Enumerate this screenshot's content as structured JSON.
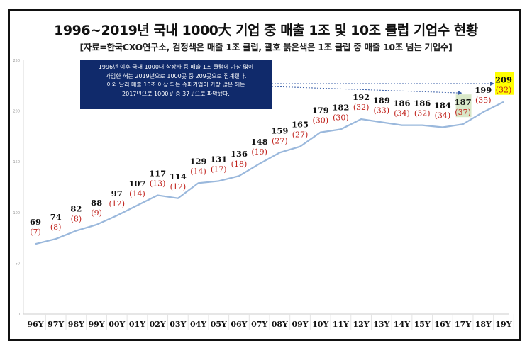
{
  "chart_data": {
    "type": "line",
    "title": "1996~2019년 국내 1000大 기업 중 매출 1조 및 10조 클럽 기업수 현황",
    "subtitle": "[자료=한국CXO연구소, 검정색은 매출 1조 클럽, 괄호 붉은색은 1조 클럽 중 매출 10조 넘는 기업수]",
    "categories": [
      "96Y",
      "97Y",
      "98Y",
      "99Y",
      "00Y",
      "01Y",
      "02Y",
      "03Y",
      "04Y",
      "05Y",
      "06Y",
      "07Y",
      "08Y",
      "09Y",
      "10Y",
      "11Y",
      "12Y",
      "13Y",
      "14Y",
      "15Y",
      "16Y",
      "17Y",
      "18Y",
      "19Y"
    ],
    "series": [
      {
        "values": [
          69,
          74,
          82,
          88,
          97,
          107,
          117,
          114,
          129,
          131,
          136,
          148,
          159,
          165,
          179,
          182,
          192,
          189,
          186,
          186,
          184,
          187,
          199,
          209
        ]
      },
      {
        "values": [
          7,
          8,
          8,
          9,
          12,
          14,
          13,
          12,
          14,
          17,
          18,
          19,
          27,
          27,
          30,
          30,
          32,
          33,
          34,
          32,
          34,
          37,
          35,
          32
        ]
      }
    ],
    "labels_1t": [
      "69",
      "74",
      "82",
      "88",
      "97",
      "107",
      "117",
      "114",
      "129",
      "131",
      "136",
      "148",
      "159",
      "165",
      "179",
      "182",
      "192",
      "189",
      "186",
      "186",
      "184",
      "187",
      "199",
      "209"
    ],
    "labels_10t": [
      "(7)",
      "(8)",
      "(8)",
      "(9)",
      "(12)",
      "(14)",
      "(13)",
      "(12)",
      "(14)",
      "(17)",
      "(18)",
      "(19)",
      "(27)",
      "(27)",
      "(30)",
      "(30)",
      "(32)",
      "(33)",
      "(34)",
      "(32)",
      "(34)",
      "(37)",
      "(35)",
      "(32)"
    ],
    "y_ticks": [
      "0",
      "50",
      "100",
      "150",
      "200",
      "250"
    ],
    "ylim": [
      0,
      250
    ],
    "grid": false,
    "line_color": "#9ab8dc",
    "label_color_1t": "#111111",
    "label_color_10t": "#c0201a",
    "highlight_2017_color": "#d9e8c8",
    "highlight_2019_color": "#ffff00",
    "note_lines": [
      "1996년 이후 국내 1000대 상장사 중 매출 1조 클럽에 가장 많이",
      "가입한 해는 2019년으로 1000곳 중 209곳으로 집계됐다.",
      "이와 달리 매출 10조 이상 되는 슈퍼기업이 가장 많은 해는",
      "2017년으로 1000곳 중 37곳으로 파악됐다."
    ]
  }
}
